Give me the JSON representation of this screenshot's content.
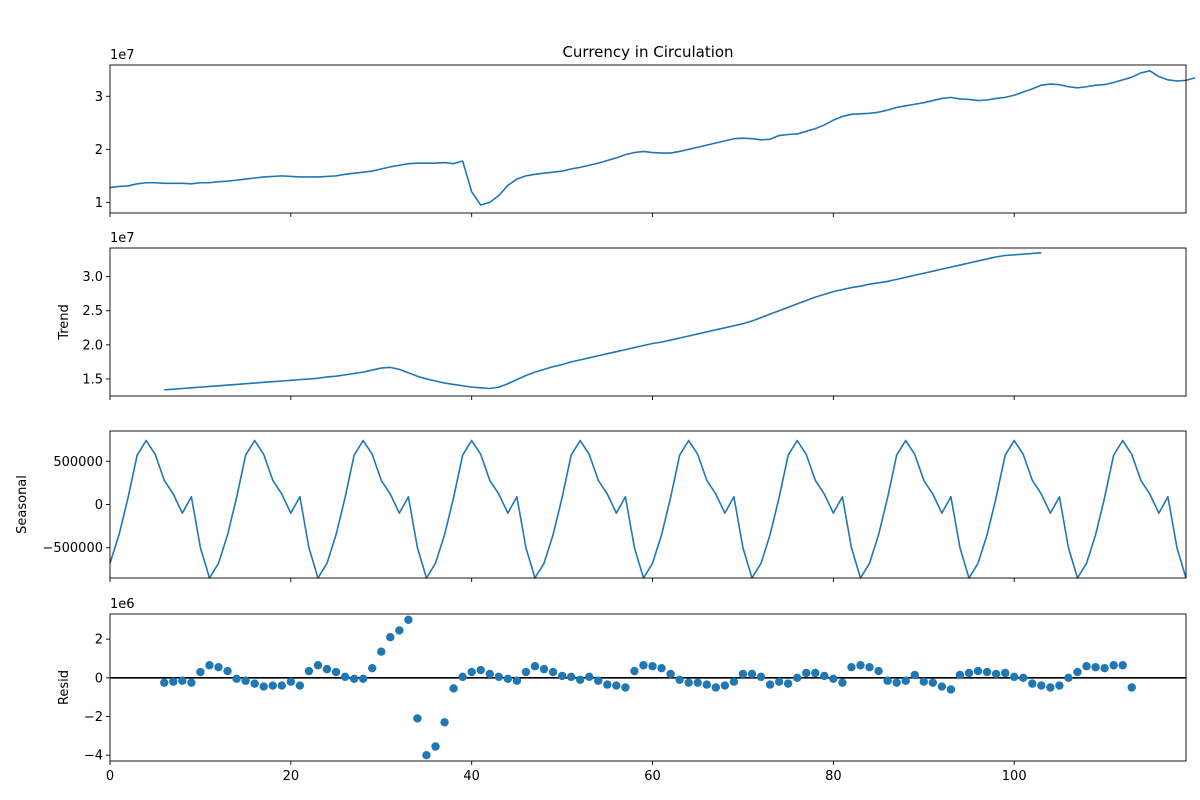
{
  "chart_data": [
    {
      "type": "line",
      "title": "Currency in Circulation",
      "ylabel": "",
      "offset_text": "1e7",
      "xlim": [
        0,
        119
      ],
      "ylim": [
        8.0,
        35.9
      ],
      "yticks": [
        10,
        20,
        30
      ],
      "ytick_labels": [
        "1",
        "2",
        "3"
      ],
      "xticks": [
        0,
        20,
        40,
        60,
        80,
        100
      ],
      "show_xtick_labels": false,
      "series": [
        {
          "x_start": 0,
          "values": [
            12.8,
            13.0,
            13.1,
            13.5,
            13.7,
            13.7,
            13.6,
            13.6,
            13.6,
            13.5,
            13.7,
            13.7,
            13.9,
            14.0,
            14.2,
            14.4,
            14.6,
            14.8,
            14.9,
            15.0,
            14.9,
            14.8,
            14.8,
            14.8,
            14.9,
            15.0,
            15.3,
            15.5,
            15.7,
            15.9,
            16.3,
            16.7,
            17.0,
            17.3,
            17.4,
            17.4,
            17.4,
            17.5,
            17.3,
            17.8,
            12.0,
            9.5,
            10.0,
            11.3,
            13.2,
            14.4,
            15.0,
            15.3,
            15.5,
            15.7,
            15.9,
            16.3,
            16.6,
            17.0,
            17.4,
            17.9,
            18.4,
            19.0,
            19.4,
            19.6,
            19.4,
            19.3,
            19.3,
            19.6,
            20.0,
            20.4,
            20.8,
            21.2,
            21.6,
            22.0,
            22.1,
            22.0,
            21.8,
            21.9,
            22.6,
            22.8,
            22.9,
            23.4,
            23.9,
            24.6,
            25.5,
            26.2,
            26.6,
            26.7,
            26.8,
            27.0,
            27.4,
            27.9,
            28.2,
            28.5,
            28.8,
            29.2,
            29.6,
            29.8,
            29.5,
            29.4,
            29.2,
            29.3,
            29.6,
            29.8,
            30.2,
            30.8,
            31.4,
            32.1,
            32.3,
            32.2,
            31.8,
            31.6,
            31.8,
            32.1,
            32.2,
            32.6,
            33.1,
            33.6,
            34.4,
            34.8,
            33.7,
            33.1,
            32.9,
            33.0,
            33.5
          ]
        }
      ]
    },
    {
      "type": "line",
      "title": "",
      "ylabel": "Trend",
      "offset_text": "1e7",
      "xlim": [
        0,
        119
      ],
      "ylim": [
        12.5,
        34.2
      ],
      "yticks": [
        15,
        20,
        25,
        30
      ],
      "ytick_labels": [
        "1.5",
        "2.0",
        "2.5",
        "3.0"
      ],
      "xticks": [
        0,
        20,
        40,
        60,
        80,
        100
      ],
      "show_xtick_labels": false,
      "series": [
        {
          "x_start": 6,
          "values": [
            13.4,
            13.5,
            13.6,
            13.7,
            13.8,
            13.9,
            14.0,
            14.1,
            14.2,
            14.3,
            14.4,
            14.5,
            14.6,
            14.7,
            14.8,
            14.9,
            15.0,
            15.1,
            15.3,
            15.4,
            15.6,
            15.8,
            16.0,
            16.3,
            16.6,
            16.7,
            16.4,
            15.9,
            15.4,
            15.0,
            14.7,
            14.4,
            14.2,
            14.0,
            13.8,
            13.7,
            13.6,
            13.8,
            14.3,
            14.9,
            15.5,
            16.0,
            16.4,
            16.8,
            17.1,
            17.5,
            17.8,
            18.1,
            18.4,
            18.7,
            19.0,
            19.3,
            19.6,
            19.9,
            20.2,
            20.4,
            20.7,
            21.0,
            21.3,
            21.6,
            21.9,
            22.2,
            22.5,
            22.8,
            23.1,
            23.5,
            24.0,
            24.5,
            25.0,
            25.5,
            26.0,
            26.5,
            27.0,
            27.4,
            27.8,
            28.1,
            28.4,
            28.6,
            28.9,
            29.1,
            29.3,
            29.6,
            29.9,
            30.2,
            30.5,
            30.8,
            31.1,
            31.4,
            31.7,
            32.0,
            32.3,
            32.6,
            32.9,
            33.1,
            33.2,
            33.3,
            33.4,
            33.5
          ]
        }
      ]
    },
    {
      "type": "line",
      "title": "",
      "ylabel": "Seasonal",
      "offset_text": "",
      "xlim": [
        0,
        119
      ],
      "ylim": [
        -850000,
        850000
      ],
      "yticks": [
        -500000,
        0,
        500000
      ],
      "ytick_labels": [
        "−500000",
        "0",
        "500000"
      ],
      "xticks": [
        0,
        20,
        40,
        60,
        80,
        100
      ],
      "show_xtick_labels": false,
      "series": [
        {
          "x_start": 0,
          "pattern_values": [
            -680000,
            -350000,
            80000,
            570000,
            740000,
            580000,
            280000,
            120000,
            -100000,
            90000,
            -500000,
            -850000
          ],
          "periods": 10
        }
      ]
    },
    {
      "type": "scatter",
      "title": "",
      "ylabel": "Resid",
      "offset_text": "1e6",
      "xlim": [
        0,
        119
      ],
      "ylim": [
        -4.3,
        3.3
      ],
      "yticks": [
        -4,
        -2,
        0,
        2
      ],
      "ytick_labels": [
        "−4",
        "−2",
        "0",
        "2"
      ],
      "xticks": [
        0,
        20,
        40,
        60,
        80,
        100
      ],
      "show_xtick_labels": true,
      "xtick_labels": [
        "0",
        "20",
        "40",
        "60",
        "80",
        "100"
      ],
      "zero_line": true,
      "series": [
        {
          "x_start": 6,
          "values": [
            -0.25,
            -0.2,
            -0.15,
            -0.25,
            0.3,
            0.65,
            0.55,
            0.35,
            -0.05,
            -0.15,
            -0.3,
            -0.45,
            -0.4,
            -0.4,
            -0.2,
            -0.4,
            0.35,
            0.65,
            0.45,
            0.3,
            0.05,
            -0.05,
            -0.05,
            0.5,
            1.35,
            2.1,
            2.45,
            3.0,
            -2.1,
            -4.0,
            -3.55,
            -2.3,
            -0.55,
            0.05,
            0.3,
            0.4,
            0.2,
            0.05,
            -0.05,
            -0.15,
            0.3,
            0.6,
            0.45,
            0.3,
            0.1,
            0.05,
            -0.1,
            0.05,
            -0.15,
            -0.35,
            -0.4,
            -0.5,
            0.35,
            0.65,
            0.6,
            0.5,
            0.2,
            -0.1,
            -0.25,
            -0.25,
            -0.35,
            -0.5,
            -0.4,
            -0.2,
            0.2,
            0.2,
            0.05,
            -0.35,
            -0.2,
            -0.3,
            0.0,
            0.25,
            0.25,
            0.1,
            -0.05,
            -0.25,
            0.55,
            0.65,
            0.55,
            0.35,
            -0.15,
            -0.25,
            -0.15,
            0.15,
            -0.2,
            -0.25,
            -0.45,
            -0.6,
            0.15,
            0.25,
            0.35,
            0.3,
            0.2,
            0.25,
            0.05,
            0.0,
            -0.3,
            -0.4,
            -0.5,
            -0.4,
            0.0,
            0.3,
            0.6,
            0.55,
            0.5,
            0.65,
            0.65,
            -0.5
          ]
        }
      ]
    }
  ],
  "colors": {
    "series": "#1f77b4",
    "axis": "#000000",
    "zero_line": "#000000"
  }
}
